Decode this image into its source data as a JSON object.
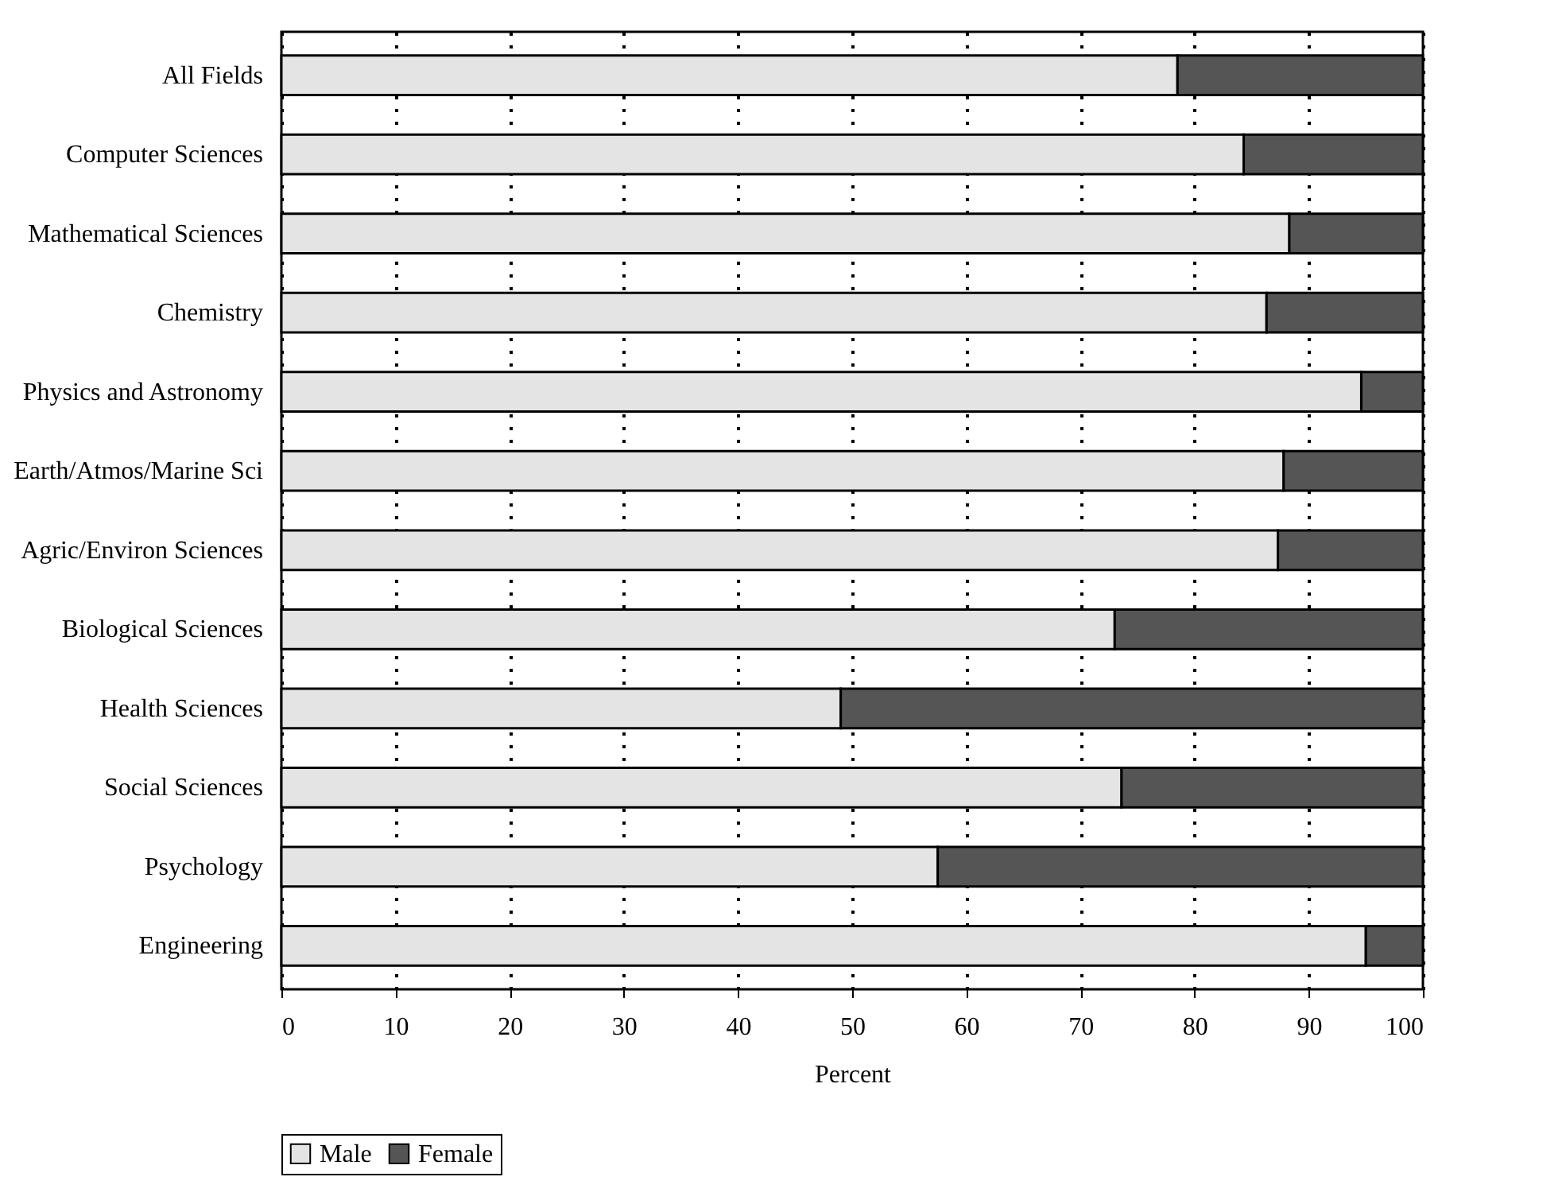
{
  "chart_data": {
    "type": "bar",
    "orientation": "horizontal",
    "stacked": true,
    "xlabel": "Percent",
    "categories": [
      "All Fields",
      "Computer Sciences",
      "Mathematical Sciences",
      "Chemistry",
      "Physics and Astronomy",
      "Earth/Atmos/Marine Sci",
      "Agric/Environ Sciences",
      "Biological Sciences",
      "Health Sciences",
      "Social Sciences",
      "Psychology",
      "Engineering"
    ],
    "series": [
      {
        "name": "Male",
        "color": "#e4e4e4",
        "values": [
          78.5,
          84.3,
          88.3,
          86.3,
          94.6,
          87.8,
          87.3,
          73.0,
          49.0,
          73.6,
          57.5,
          95.0
        ]
      },
      {
        "name": "Female",
        "color": "#555555",
        "values": [
          21.5,
          15.7,
          11.7,
          13.7,
          5.4,
          12.2,
          12.7,
          27.0,
          51.0,
          26.4,
          42.5,
          5.0
        ]
      }
    ],
    "xlim": [
      0,
      100
    ],
    "xticks": [
      0,
      10,
      20,
      30,
      40,
      50,
      60,
      70,
      80,
      90,
      100
    ],
    "grid": "x",
    "legend": "bottom"
  }
}
